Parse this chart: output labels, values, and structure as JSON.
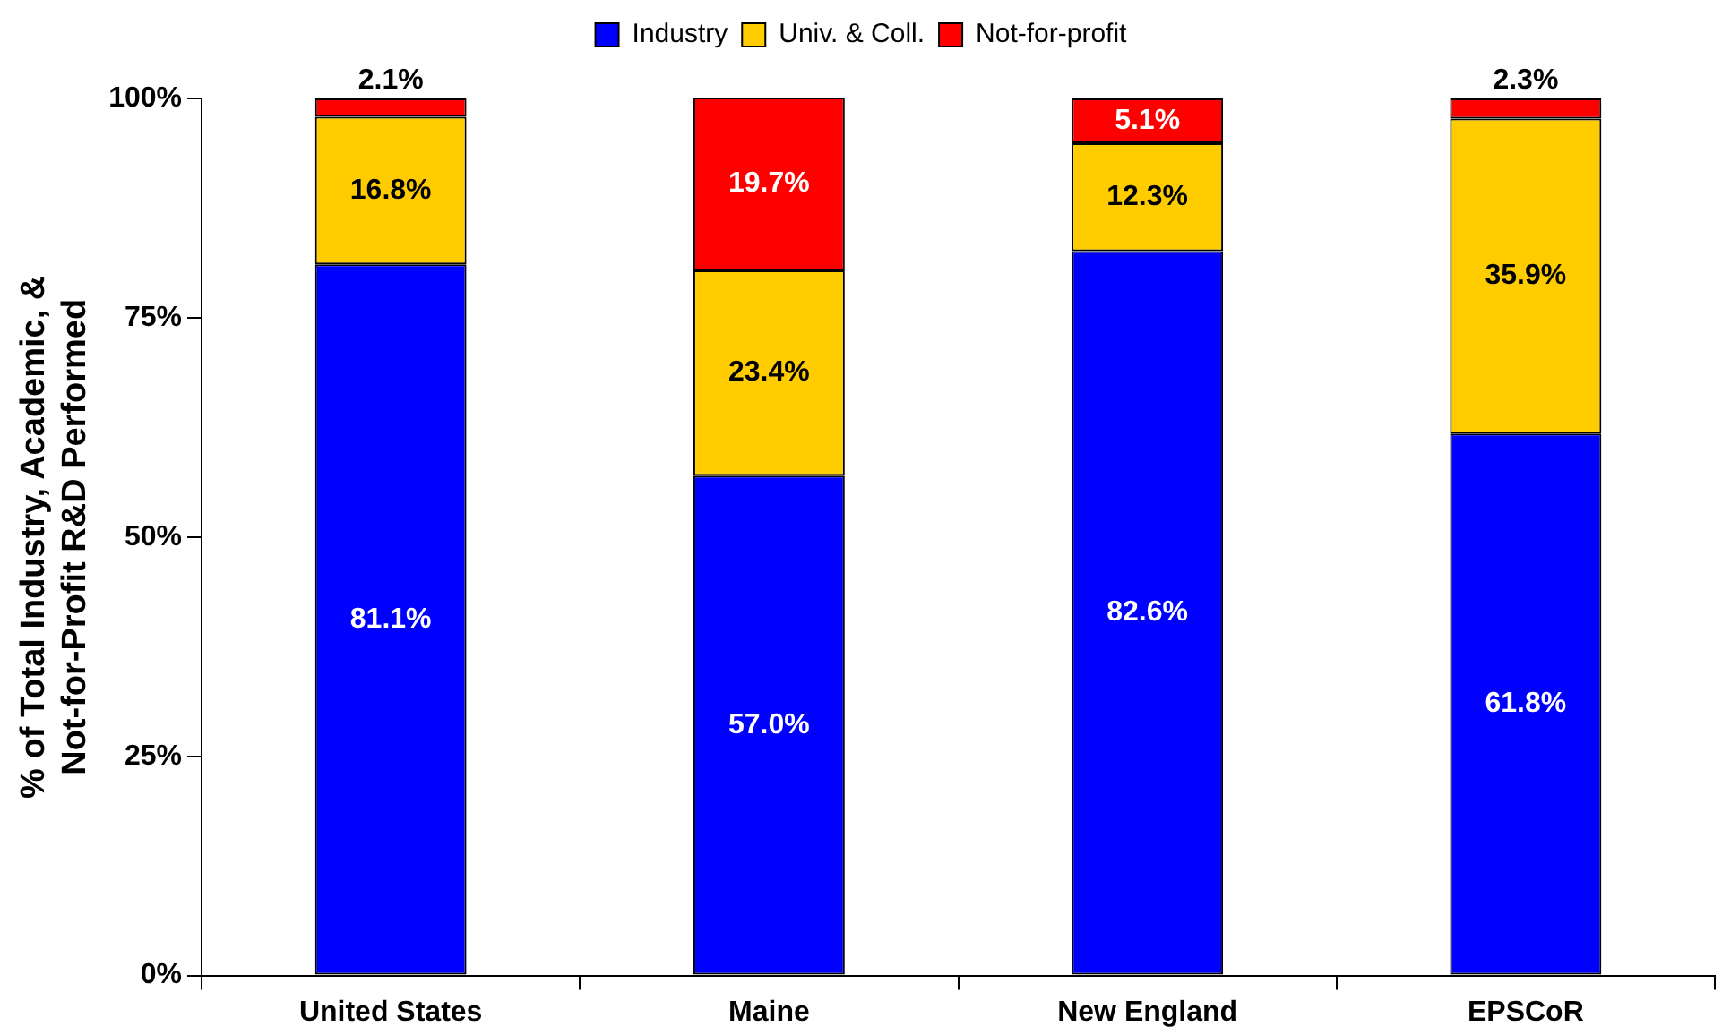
{
  "chart_data": {
    "type": "bar",
    "stacked": true,
    "ylabel": "% of Total Industry, Academic, & Not-for-Profit R&D Performed",
    "categories": [
      "United States",
      "Maine",
      "New England",
      "EPSCoR"
    ],
    "series": [
      {
        "name": "Industry",
        "color": "#0000ff",
        "values": [
          81.1,
          57.0,
          82.6,
          61.8
        ],
        "value_labels": [
          "81.1%",
          "57.0%",
          "82.6%",
          "61.8%"
        ]
      },
      {
        "name": "Univ. & Coll.",
        "color": "#ffcc00",
        "values": [
          16.8,
          23.4,
          12.3,
          35.9
        ],
        "value_labels": [
          "16.8%",
          "23.4%",
          "12.3%",
          "35.9%"
        ]
      },
      {
        "name": "Not-for-profit",
        "color": "#ff0000",
        "values": [
          2.1,
          19.7,
          5.1,
          2.3
        ],
        "value_labels": [
          "2.1%",
          "19.7%",
          "5.1%",
          "2.3%"
        ]
      }
    ],
    "ylim": [
      0,
      100
    ],
    "yticks": [
      {
        "value": 0,
        "label": "0%"
      },
      {
        "value": 25,
        "label": "25%"
      },
      {
        "value": 50,
        "label": "50%"
      },
      {
        "value": 75,
        "label": "75%"
      },
      {
        "value": 100,
        "label": "100%"
      }
    ],
    "grid": false,
    "legend": "top"
  }
}
